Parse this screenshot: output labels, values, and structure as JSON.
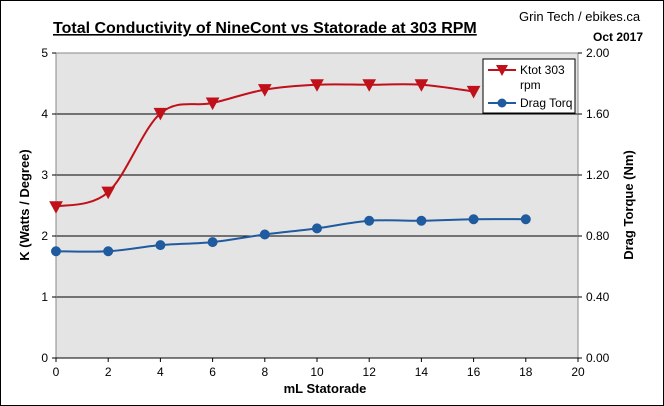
{
  "chart_data": {
    "type": "line",
    "title": "Total Conductivity of NineCont vs Statorade at 303 RPM",
    "credit": "Grin Tech / ebikes.ca",
    "date": "Oct 2017",
    "xlabel": "mL Statorade",
    "ylabel_left": "K (Watts / Degree)",
    "ylabel_right": "Drag Torque (Nm)",
    "xlim": [
      0,
      20
    ],
    "ylim_left": [
      0,
      5
    ],
    "ylim_right": [
      0,
      2
    ],
    "x_ticks": [
      "0",
      "2",
      "4",
      "6",
      "8",
      "10",
      "12",
      "14",
      "16",
      "18",
      "20"
    ],
    "y_left_ticks": [
      "0",
      "1",
      "2",
      "3",
      "4",
      "5"
    ],
    "y_right_ticks": [
      "0.00",
      "0.40",
      "0.80",
      "1.20",
      "1.60",
      "2.00"
    ],
    "grid": "horizontal",
    "legend_position": "top-right",
    "legend": [
      "Ktot 303",
      "rpm",
      "Drag Torq"
    ],
    "series": [
      {
        "name": "Ktot 303 rpm",
        "axis": "left",
        "color": "#C0101A",
        "marker": "triangle-down",
        "x": [
          0,
          2,
          4,
          6,
          8,
          10,
          12,
          14,
          16
        ],
        "y": [
          2.48,
          2.72,
          4.01,
          4.18,
          4.4,
          4.48,
          4.48,
          4.48,
          4.37
        ]
      },
      {
        "name": "Drag Torq",
        "axis": "right",
        "color": "#1F5B9E",
        "marker": "circle",
        "x": [
          0,
          2,
          4,
          6,
          8,
          10,
          12,
          14,
          16,
          18
        ],
        "y": [
          0.7,
          0.7,
          0.74,
          0.76,
          0.81,
          0.85,
          0.9,
          0.9,
          0.91,
          0.91
        ]
      }
    ]
  }
}
